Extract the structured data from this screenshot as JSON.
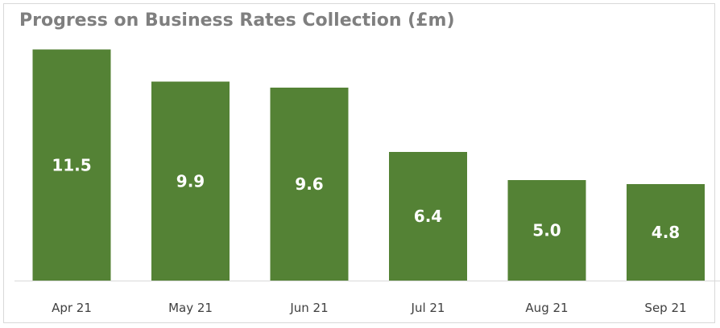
{
  "chart_data": {
    "type": "bar",
    "title": "Progress on Business Rates Collection (£m)",
    "categories": [
      "Apr 21",
      "May 21",
      "Jun 21",
      "Jul 21",
      "Aug 21",
      "Sep 21"
    ],
    "values": [
      11.5,
      9.9,
      9.6,
      6.4,
      5.0,
      4.8
    ],
    "value_labels": [
      "11.5",
      "9.9",
      "9.6",
      "6.4",
      "5.0",
      "4.8"
    ],
    "xlabel": "",
    "ylabel": "",
    "ylim": [
      0,
      12
    ],
    "grid": false,
    "legend": "none",
    "bar_color": "#548235",
    "label_color": "#ffffff",
    "axis_color": "#d9d9d9",
    "title_color": "#7f7f7f"
  }
}
